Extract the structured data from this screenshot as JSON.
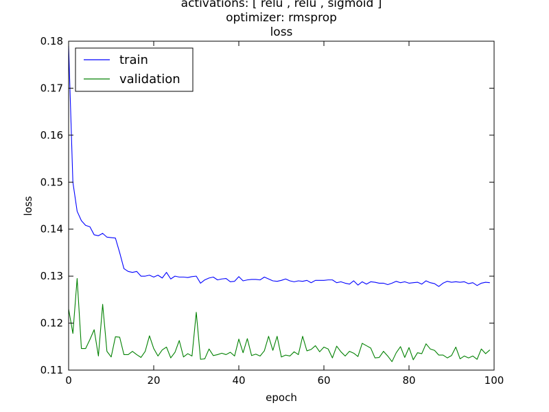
{
  "chart_data": {
    "type": "line",
    "title_lines": [
      "activations: [ relu , relu , sigmoid ]",
      "optimizer: rmsprop",
      "loss"
    ],
    "xlabel": "epoch",
    "ylabel": "loss",
    "xlim": [
      0,
      100
    ],
    "ylim": [
      0.11,
      0.18
    ],
    "xticks": [
      0,
      20,
      40,
      60,
      80,
      100
    ],
    "xtick_labels": [
      "0",
      "20",
      "40",
      "60",
      "80",
      "100"
    ],
    "yticks": [
      0.11,
      0.12,
      0.13,
      0.14,
      0.15,
      0.16,
      0.17,
      0.18
    ],
    "ytick_labels": [
      "0.11",
      "0.12",
      "0.13",
      "0.14",
      "0.15",
      "0.16",
      "0.17",
      "0.18"
    ],
    "grid": false,
    "legend_position": "top-left",
    "x": [
      0,
      1,
      2,
      3,
      4,
      5,
      6,
      7,
      8,
      9,
      10,
      11,
      12,
      13,
      14,
      15,
      16,
      17,
      18,
      19,
      20,
      21,
      22,
      23,
      24,
      25,
      26,
      27,
      28,
      29,
      30,
      31,
      32,
      33,
      34,
      35,
      36,
      37,
      38,
      39,
      40,
      41,
      42,
      43,
      44,
      45,
      46,
      47,
      48,
      49,
      50,
      51,
      52,
      53,
      54,
      55,
      56,
      57,
      58,
      59,
      60,
      61,
      62,
      63,
      64,
      65,
      66,
      67,
      68,
      69,
      70,
      71,
      72,
      73,
      74,
      75,
      76,
      77,
      78,
      79,
      80,
      81,
      82,
      83,
      84,
      85,
      86,
      87,
      88,
      89,
      90,
      91,
      92,
      93,
      94,
      95,
      96,
      97,
      98,
      99
    ],
    "series": [
      {
        "name": "train",
        "color": "#0000ff",
        "values": [
          0.179,
          0.15,
          0.1438,
          0.1418,
          0.1408,
          0.1405,
          0.1388,
          0.1386,
          0.1391,
          0.1383,
          0.1382,
          0.1381,
          0.135,
          0.1316,
          0.131,
          0.1308,
          0.131,
          0.13,
          0.13,
          0.1302,
          0.1298,
          0.1302,
          0.1296,
          0.1308,
          0.1294,
          0.13,
          0.1298,
          0.1298,
          0.1297,
          0.1299,
          0.13,
          0.1285,
          0.1292,
          0.1296,
          0.1298,
          0.1292,
          0.1294,
          0.1295,
          0.1288,
          0.1289,
          0.1299,
          0.129,
          0.1292,
          0.1293,
          0.1293,
          0.1292,
          0.1298,
          0.1294,
          0.129,
          0.1289,
          0.1291,
          0.1294,
          0.129,
          0.1288,
          0.129,
          0.1289,
          0.1291,
          0.1286,
          0.1291,
          0.1291,
          0.1291,
          0.1292,
          0.1292,
          0.1286,
          0.1288,
          0.1285,
          0.1283,
          0.129,
          0.1281,
          0.1288,
          0.1283,
          0.1288,
          0.1287,
          0.1285,
          0.1285,
          0.1282,
          0.1285,
          0.1289,
          0.1286,
          0.1288,
          0.1285,
          0.1286,
          0.1287,
          0.1283,
          0.129,
          0.1286,
          0.1284,
          0.1278,
          0.1285,
          0.1289,
          0.1287,
          0.1288,
          0.1287,
          0.1288,
          0.1284,
          0.1286,
          0.128,
          0.1285,
          0.1287,
          0.1286
        ]
      },
      {
        "name": "validation",
        "color": "#008000",
        "values": [
          0.123,
          0.1178,
          0.1295,
          0.1146,
          0.1146,
          0.1165,
          0.1186,
          0.113,
          0.124,
          0.114,
          0.1128,
          0.1171,
          0.117,
          0.1133,
          0.1133,
          0.114,
          0.1133,
          0.1127,
          0.114,
          0.1173,
          0.1146,
          0.113,
          0.1143,
          0.1149,
          0.1126,
          0.1138,
          0.1163,
          0.1128,
          0.1135,
          0.113,
          0.1223,
          0.1123,
          0.1124,
          0.1145,
          0.1131,
          0.1133,
          0.1136,
          0.1133,
          0.1138,
          0.113,
          0.1166,
          0.1137,
          0.1167,
          0.1131,
          0.1134,
          0.113,
          0.1141,
          0.1172,
          0.1142,
          0.1172,
          0.1128,
          0.1132,
          0.113,
          0.1139,
          0.1133,
          0.1172,
          0.1141,
          0.1144,
          0.1152,
          0.1139,
          0.1149,
          0.1145,
          0.1126,
          0.1151,
          0.1139,
          0.113,
          0.114,
          0.1136,
          0.1129,
          0.1157,
          0.1152,
          0.1147,
          0.1126,
          0.1127,
          0.114,
          0.113,
          0.1118,
          0.1137,
          0.115,
          0.1127,
          0.1148,
          0.1122,
          0.1137,
          0.1135,
          0.1156,
          0.1145,
          0.1142,
          0.1132,
          0.1132,
          0.1126,
          0.1131,
          0.1149,
          0.1124,
          0.113,
          0.1126,
          0.113,
          0.1123,
          0.1145,
          0.1135,
          0.1143
        ]
      }
    ]
  }
}
